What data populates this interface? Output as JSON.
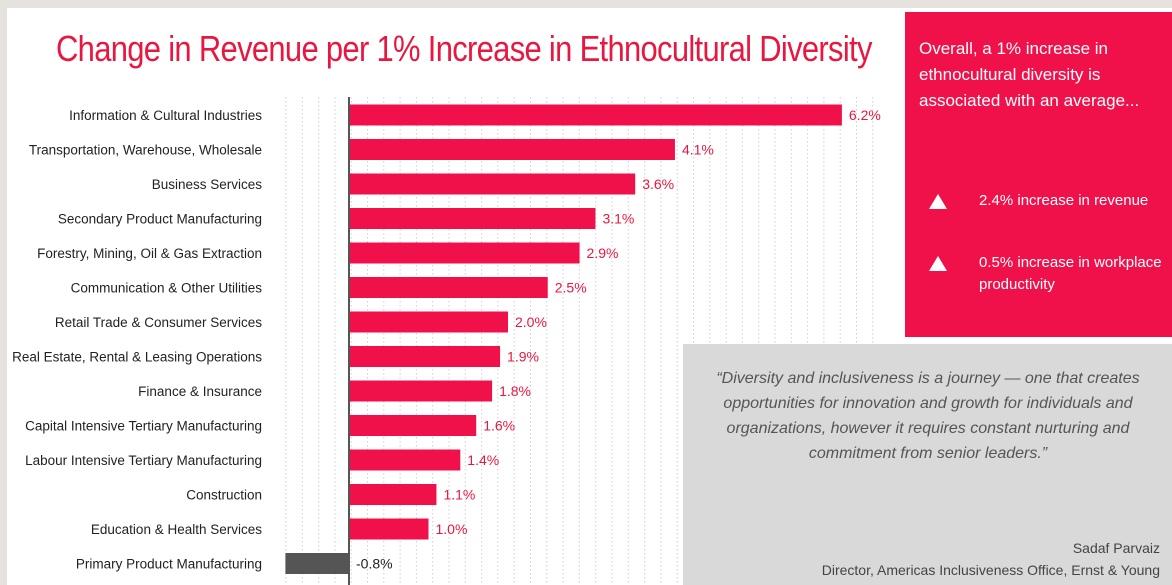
{
  "chart_data": {
    "type": "bar",
    "orientation": "horizontal",
    "title": "Change in Revenue per 1% Increase in Ethnocultural Diversity",
    "categories": [
      "Information & Cultural Industries",
      "Transportation, Warehouse, Wholesale",
      "Business Services",
      "Secondary Product Manufacturing",
      "Forestry, Mining, Oil & Gas Extraction",
      "Communication & Other Utilities",
      "Retail Trade & Consumer Services",
      "Real Estate, Rental & Leasing Operations",
      "Finance & Insurance",
      "Capital Intensive Tertiary Manufacturing",
      "Labour Intensive Tertiary Manufacturing",
      "Construction",
      "Education & Health Services",
      "Primary Product Manufacturing"
    ],
    "values": [
      6.2,
      4.1,
      3.6,
      3.1,
      2.9,
      2.5,
      2.0,
      1.9,
      1.8,
      1.6,
      1.4,
      1.1,
      1.0,
      -0.8
    ],
    "value_labels": [
      "6.2%",
      "4.1%",
      "3.6%",
      "3.1%",
      "2.9%",
      "2.5%",
      "2.0%",
      "1.9%",
      "1.8%",
      "1.6%",
      "1.4%",
      "1.1%",
      "1.0%",
      "-0.8%"
    ],
    "xlim": [
      -1,
      6.5
    ],
    "grid": true,
    "positive_color": "#f0114a",
    "negative_color": "#555555",
    "label_positive_color": "#e8173f",
    "label_negative_color": "#222222"
  },
  "stats": {
    "intro": "Overall, a 1% increase in ethnocultural diversity is associated with an average...",
    "items": [
      {
        "icon": "up-triangle-icon",
        "text": "2.4% increase in revenue"
      },
      {
        "icon": "up-triangle-icon",
        "text": "0.5% increase in workplace productivity"
      }
    ]
  },
  "quote": {
    "text": "“Diversity and inclusiveness is a journey — one that creates opportunities for innovation and growth for individuals and organizations, however it requires constant nurturing and commitment from senior leaders.”",
    "author": "Sadaf Parvaiz",
    "role": "Director, Americas Inclusiveness Office, Ernst & Young"
  }
}
